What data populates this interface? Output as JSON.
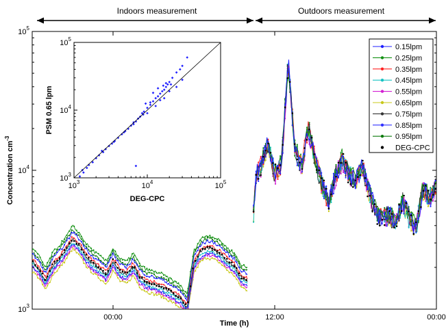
{
  "chart_data": [
    {
      "type": "line",
      "title": "",
      "annotations": [
        {
          "text": "Indoors measurement",
          "span": "indoor"
        },
        {
          "text": "Outdoors measurement",
          "span": "outdoor"
        }
      ],
      "xlabel": "Time (h)",
      "ylabel": "Concentration cm",
      "ylabel_sup": "-3",
      "y_scale": "log",
      "ylim": [
        1000,
        100000
      ],
      "y_ticks": [
        {
          "base": "10",
          "exp": "3",
          "value": 1000
        },
        {
          "base": "10",
          "exp": "4",
          "value": 10000
        },
        {
          "base": "10",
          "exp": "5",
          "value": 100000
        }
      ],
      "x_unit": "hours since 18:00 (day 1)",
      "xlim": [
        0,
        30
      ],
      "x_ticks": [
        {
          "label": "00:00",
          "value": 6
        },
        {
          "label": "12:00",
          "value": 18
        },
        {
          "label": "00:00",
          "value": 30
        }
      ],
      "indoor_end": 16,
      "outdoor_start": 16.4,
      "legend_position": "top-right",
      "series": [
        {
          "name": "0.15lpm",
          "color": "#1f1fff",
          "marker": "point",
          "offset": 1.0
        },
        {
          "name": "0.25lpm",
          "color": "#139113",
          "marker": "point",
          "offset": 1.1
        },
        {
          "name": "0.35lpm",
          "color": "#ff2020",
          "marker": "point",
          "offset": 0.93
        },
        {
          "name": "0.45lpm",
          "color": "#16c2c2",
          "marker": "point",
          "offset": 0.85
        },
        {
          "name": "0.55lpm",
          "color": "#d21fd2",
          "marker": "point",
          "offset": 0.8
        },
        {
          "name": "0.65lpm",
          "color": "#c8c81a",
          "marker": "point",
          "offset": 0.76
        },
        {
          "name": "0.75lpm",
          "color": "#333333",
          "marker": "point",
          "offset": 0.89
        },
        {
          "name": "0.85lpm",
          "color": "#3030ff",
          "marker": "point",
          "offset": 0.82
        },
        {
          "name": "0.95lpm",
          "color": "#0d7a0d",
          "marker": "point",
          "offset": 1.04
        },
        {
          "name": "DEG-CPC",
          "color": "#000000",
          "marker": "dot",
          "offset": 0.9
        }
      ],
      "reference_curve_x": [
        0,
        0.5,
        1,
        1.5,
        2,
        2.5,
        3,
        3.5,
        4,
        4.5,
        5,
        5.5,
        6,
        6.5,
        7,
        7.5,
        8,
        8.5,
        9,
        9.5,
        10,
        10.5,
        11,
        11.5,
        12,
        12.5,
        13,
        13.5,
        14,
        14.5,
        15,
        15.5,
        16,
        16.4,
        16.6,
        17,
        17.5,
        18,
        18.5,
        19,
        19.5,
        20,
        20.5,
        21,
        21.5,
        22,
        22.5,
        23,
        23.5,
        24,
        24.5,
        25,
        25.5,
        26,
        26.5,
        27,
        27.5,
        28,
        28.5,
        29,
        29.5,
        30
      ],
      "reference_curve_y": [
        2500,
        2200,
        1800,
        2300,
        2600,
        3000,
        3600,
        3200,
        2700,
        2400,
        2200,
        2000,
        2500,
        2100,
        2000,
        2300,
        1900,
        1750,
        1700,
        1650,
        1550,
        1450,
        1350,
        1150,
        2400,
        2900,
        3100,
        3000,
        2800,
        2500,
        2300,
        1900,
        1800,
        4500,
        9000,
        11000,
        16000,
        9500,
        11000,
        60000,
        14000,
        11000,
        20000,
        12000,
        8000,
        6000,
        9000,
        12000,
        9500,
        8500,
        11000,
        7000,
        5000,
        4500,
        4800,
        4300,
        6000,
        4500,
        3900,
        7500,
        6200,
        8000
      ]
    },
    {
      "type": "scatter",
      "title": "",
      "xlabel": "DEG-CPC",
      "ylabel": "PSM 0.65 lpm",
      "x_scale": "log",
      "y_scale": "log",
      "xlim": [
        1000,
        100000
      ],
      "ylim": [
        1000,
        100000
      ],
      "x_ticks": [
        {
          "base": "10",
          "exp": "3",
          "value": 1000
        },
        {
          "base": "10",
          "exp": "4",
          "value": 10000
        },
        {
          "base": "10",
          "exp": "5",
          "value": 100000
        }
      ],
      "y_ticks": [
        {
          "base": "10",
          "exp": "3",
          "value": 1000
        },
        {
          "base": "10",
          "exp": "4",
          "value": 10000
        },
        {
          "base": "10",
          "exp": "5",
          "value": 100000
        }
      ],
      "point_color": "#1f1fff",
      "reference_line": "1:1",
      "points": [
        [
          1200,
          1050
        ],
        [
          1350,
          1200
        ],
        [
          1500,
          1400
        ],
        [
          1600,
          1550
        ],
        [
          1800,
          1700
        ],
        [
          2000,
          1950
        ],
        [
          2200,
          2150
        ],
        [
          2500,
          2400
        ],
        [
          2700,
          2650
        ],
        [
          3000,
          2950
        ],
        [
          3300,
          3200
        ],
        [
          3600,
          3500
        ],
        [
          4000,
          3900
        ],
        [
          4500,
          4400
        ],
        [
          5000,
          4900
        ],
        [
          5500,
          5300
        ],
        [
          6000,
          5900
        ],
        [
          6500,
          6200
        ],
        [
          7000,
          6800
        ],
        [
          7500,
          7500
        ],
        [
          8000,
          8000
        ],
        [
          8500,
          9000
        ],
        [
          9000,
          9500
        ],
        [
          10000,
          10800
        ],
        [
          11000,
          12000
        ],
        [
          12000,
          13500
        ],
        [
          13000,
          15000
        ],
        [
          14000,
          16000
        ],
        [
          15000,
          17500
        ],
        [
          16000,
          19000
        ],
        [
          17000,
          20000
        ],
        [
          18000,
          22000
        ],
        [
          19000,
          24000
        ],
        [
          20000,
          26000
        ],
        [
          22000,
          30000
        ],
        [
          25000,
          36000
        ],
        [
          28000,
          40000
        ],
        [
          30000,
          45000
        ],
        [
          35000,
          60000
        ],
        [
          12000,
          18000
        ],
        [
          9500,
          12500
        ],
        [
          15000,
          14000
        ],
        [
          20000,
          19000
        ],
        [
          10000,
          9000
        ],
        [
          7000,
          1500
        ],
        [
          25000,
          22000
        ],
        [
          13000,
          11500
        ],
        [
          18000,
          25000
        ],
        [
          30000,
          28000
        ],
        [
          14000,
          21000
        ],
        [
          17000,
          15000
        ],
        [
          11000,
          13000
        ],
        [
          1300,
          1300
        ],
        [
          2400,
          2500
        ],
        [
          3500,
          3400
        ],
        [
          4800,
          4700
        ],
        [
          6500,
          6600
        ],
        [
          8800,
          8600
        ],
        [
          16500,
          23000
        ],
        [
          21000,
          24000
        ]
      ]
    }
  ]
}
